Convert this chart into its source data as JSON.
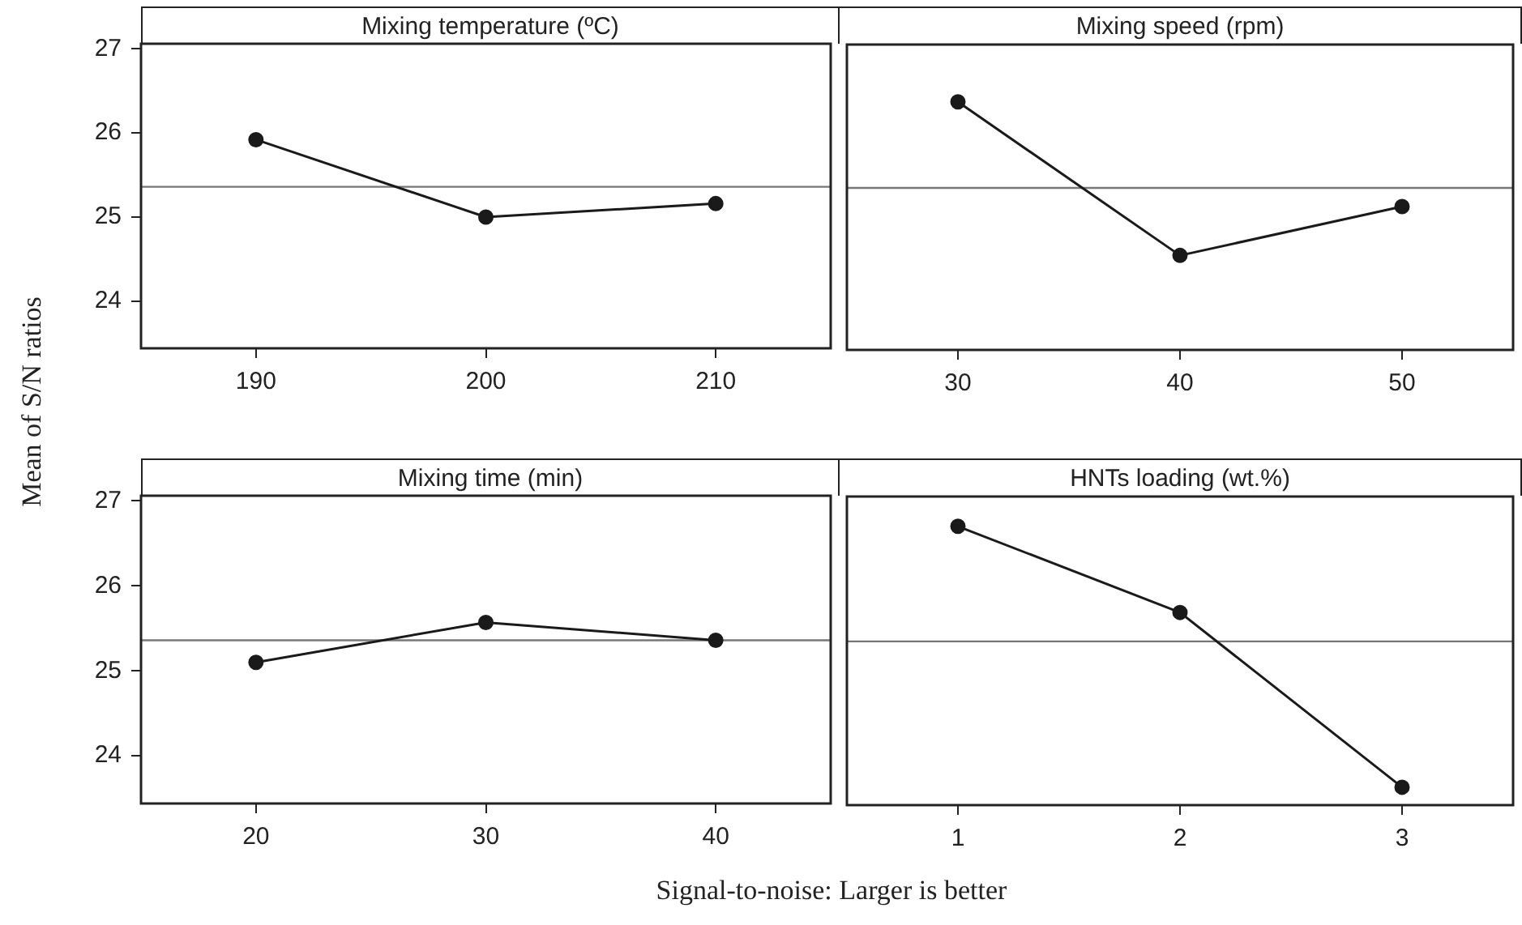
{
  "chart_data": [
    {
      "type": "line",
      "title": "Mixing temperature (ºC)",
      "ylabel": "Mean of S/N ratios",
      "x": [
        190,
        200,
        210
      ],
      "xlim": [
        185,
        215
      ],
      "xticks": [
        190,
        200,
        210
      ],
      "ylim": [
        23.44,
        27.06
      ],
      "yticks": [
        24,
        25,
        26,
        27
      ],
      "color": "#1a1a1a",
      "marker": "circle",
      "values": [
        25.92,
        25.0,
        25.16
      ],
      "ref_lines": [
        {
          "axis": "y",
          "value": 25.36,
          "color": "#777777"
        }
      ]
    },
    {
      "type": "line",
      "title": "Mixing speed (rpm)",
      "x": [
        30,
        40,
        50
      ],
      "xlim": [
        25,
        55
      ],
      "xticks": [
        30,
        40,
        50
      ],
      "ylim": [
        23.44,
        27.06
      ],
      "yticks": [
        24,
        25,
        26,
        27
      ],
      "tick_labels": "x",
      "color": "#1a1a1a",
      "marker": "circle",
      "values": [
        26.38,
        24.56,
        25.14
      ],
      "ref_lines": [
        {
          "axis": "y",
          "value": 25.36,
          "color": "#777777"
        }
      ]
    },
    {
      "type": "line",
      "title": "Mixing time (min)",
      "xlabel": "Signal-to-noise: Larger is better",
      "x": [
        20,
        30,
        40
      ],
      "xlim": [
        15,
        45
      ],
      "xticks": [
        20,
        30,
        40
      ],
      "ylim": [
        23.44,
        27.06
      ],
      "yticks": [
        24,
        25,
        26,
        27
      ],
      "color": "#1a1a1a",
      "marker": "circle",
      "values": [
        25.1,
        25.57,
        25.36
      ],
      "ref_lines": [
        {
          "axis": "y",
          "value": 25.36,
          "color": "#777777"
        }
      ]
    },
    {
      "type": "line",
      "title": "HNTs loading (wt.%)",
      "x": [
        1,
        2,
        3
      ],
      "xlim": [
        0.5,
        3.5
      ],
      "xticks": [
        1,
        2,
        3
      ],
      "ylim": [
        23.44,
        27.06
      ],
      "yticks": [
        24,
        25,
        26,
        27
      ],
      "tick_labels": "x",
      "color": "#1a1a1a",
      "marker": "circle",
      "values": [
        26.71,
        25.7,
        23.65
      ],
      "ref_lines": [
        {
          "axis": "y",
          "value": 25.36,
          "color": "#777777"
        }
      ]
    }
  ]
}
